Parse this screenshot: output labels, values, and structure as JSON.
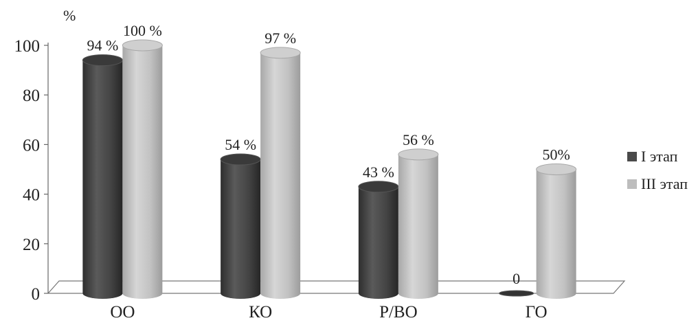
{
  "chart_data": {
    "type": "bar",
    "title": "",
    "xlabel": "",
    "ylabel": "%",
    "ylim": [
      0,
      100
    ],
    "yticks": [
      0,
      20,
      40,
      60,
      80,
      100
    ],
    "yticks_labels": [
      "0",
      "20",
      "40",
      "60",
      "80",
      "100"
    ],
    "grid": false,
    "legend_position": "right",
    "categories": [
      "ОО",
      "КО",
      "Р/ВО",
      "ГО"
    ],
    "series": [
      {
        "name": "I этап",
        "color": "#4a4a4a",
        "values": [
          94,
          54,
          43,
          0
        ],
        "labels": [
          "94 %",
          "54 %",
          "43 %",
          "0"
        ]
      },
      {
        "name": "III этап",
        "color": "#bdbdbd",
        "values": [
          100,
          97,
          56,
          50
        ],
        "labels": [
          "100 %",
          "97 %",
          "56 %",
          "50%"
        ]
      }
    ]
  }
}
